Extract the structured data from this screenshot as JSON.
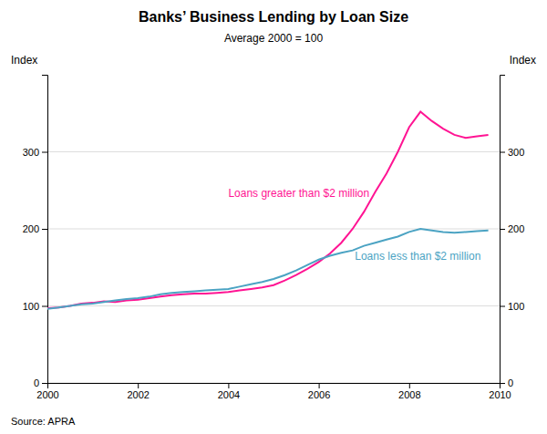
{
  "chart_data": {
    "type": "line",
    "title": "Banks’ Business Lending by Loan Size",
    "subtitle": "Average 2000 = 100",
    "ylabel": "Index",
    "y2label": "Index",
    "source": "Source: APRA",
    "x": [
      2000.0,
      2000.25,
      2000.5,
      2000.75,
      2001.0,
      2001.25,
      2001.5,
      2001.75,
      2002.0,
      2002.25,
      2002.5,
      2002.75,
      2003.0,
      2003.25,
      2003.5,
      2003.75,
      2004.0,
      2004.25,
      2004.5,
      2004.75,
      2005.0,
      2005.25,
      2005.5,
      2005.75,
      2006.0,
      2006.25,
      2006.5,
      2006.75,
      2007.0,
      2007.25,
      2007.5,
      2007.75,
      2008.0,
      2008.25,
      2008.5,
      2008.75,
      2009.0,
      2009.25,
      2009.5,
      2009.75
    ],
    "series": [
      {
        "color": "#FF1493",
        "values": [
          97,
          98,
          100,
          103,
          104,
          106,
          105,
          107,
          108,
          110,
          112,
          114,
          115,
          116,
          116,
          117,
          118,
          120,
          122,
          124,
          127,
          133,
          140,
          148,
          157,
          168,
          182,
          200,
          222,
          248,
          272,
          300,
          332,
          352,
          340,
          330,
          322,
          318,
          320,
          322
        ]
      },
      {
        "color": "#4BA3C3",
        "values": [
          96,
          98,
          100,
          102,
          103,
          105,
          107,
          109,
          110,
          112,
          115,
          117,
          118,
          119,
          120,
          121,
          122,
          125,
          128,
          131,
          135,
          140,
          146,
          153,
          160,
          165,
          169,
          172,
          178,
          182,
          186,
          190,
          196,
          200,
          198,
          196,
          195,
          196,
          197,
          198
        ]
      }
    ],
    "annotations": [
      {
        "text": "Loans greater than $2 million",
        "x": 2004.0,
        "y": 245,
        "color": "#FF1493"
      },
      {
        "text": "Loans less than $2 million",
        "x": 2006.8,
        "y": 163,
        "color": "#4BA3C3"
      }
    ],
    "xlim": [
      2000,
      2010
    ],
    "xticks": [
      2000,
      2002,
      2004,
      2006,
      2008,
      2010
    ],
    "ylim": [
      0,
      400
    ],
    "yticks": [
      0,
      100,
      200,
      300
    ],
    "y2lim": [
      0,
      400
    ],
    "y2ticks": [
      0,
      100,
      200,
      300
    ],
    "grid": "y"
  }
}
